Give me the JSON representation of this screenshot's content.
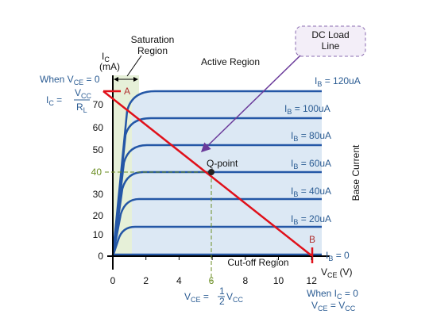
{
  "axes": {
    "y_title": {
      "main": "I",
      "sub": "C"
    },
    "y_unit": "(mA)",
    "x_title": {
      "main": "V",
      "sub": "CE"
    },
    "x_unit": "(V)",
    "y_ticks": [
      0,
      10,
      20,
      30,
      40,
      50,
      60,
      70
    ],
    "x_ticks": [
      0,
      2,
      4,
      6,
      8,
      10,
      12
    ],
    "q_y_tick": 40,
    "q_x_tick": 6
  },
  "regions": {
    "saturation": [
      "Saturation",
      "Region"
    ],
    "active": "Active Region",
    "cutoff": "Cut-off Region"
  },
  "load_line": {
    "label": [
      "DC Load",
      "Line"
    ],
    "point_a": "A",
    "point_b": "B"
  },
  "q_point": "Q-point",
  "curves": [
    {
      "main": "I",
      "sub": "B",
      "text": " = 120uA"
    },
    {
      "main": "I",
      "sub": "B",
      "text": " = 100uA"
    },
    {
      "main": "I",
      "sub": "B",
      "text": " = 80uA"
    },
    {
      "main": "I",
      "sub": "B",
      "text": " = 60uA"
    },
    {
      "main": "I",
      "sub": "B",
      "text": " = 40uA"
    },
    {
      "main": "I",
      "sub": "B",
      "text": " = 20uA"
    },
    {
      "main": "I",
      "sub": "B",
      "text": " = 0"
    }
  ],
  "side_label": "Base Current",
  "notes": {
    "left_when": {
      "text": "When V",
      "sub": "CE",
      "rest": " = 0"
    },
    "left_eq": {
      "main": "I",
      "sub": "C",
      "eq": " = ",
      "num": "V",
      "num_sub": "CC",
      "den": "R",
      "den_sub": "L"
    },
    "bottom_eq": {
      "main": "V",
      "sub": "CE",
      "eq": " = ",
      "num": "1",
      "den": "2",
      "rest": "V",
      "rest_sub": "CC"
    },
    "right_when": {
      "text": "When I",
      "sub": "C",
      "rest": " = 0"
    },
    "right_eq": {
      "main": "V",
      "sub": "CE",
      "eq": " = V",
      "rest_sub": "CC"
    }
  }
}
